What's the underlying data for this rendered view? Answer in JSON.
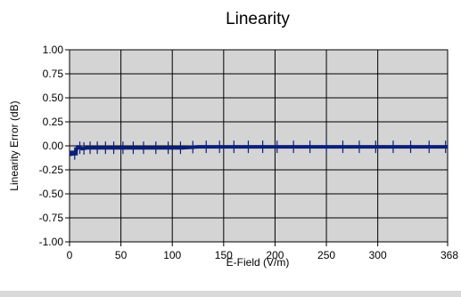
{
  "chart_data": {
    "type": "line",
    "title": "Linearity",
    "xlabel": "E-Field (V/m)",
    "ylabel": "Linearity Error (dB)",
    "xlim": [
      0,
      368
    ],
    "ylim": [
      -1.0,
      1.0
    ],
    "x_ticks": [
      0,
      50,
      100,
      150,
      200,
      250,
      300,
      368
    ],
    "x_tick_labels": [
      "0",
      "50",
      "100",
      "150",
      "200",
      "250",
      "300",
      "368"
    ],
    "y_ticks": [
      1.0,
      0.75,
      0.5,
      0.25,
      0.0,
      -0.25,
      -0.5,
      -0.75,
      -1.0
    ],
    "y_tick_labels": [
      "1.00",
      "0.75",
      "0.50",
      "0.25",
      "0.00",
      "-0.25",
      "-0.50",
      "-0.75",
      "-1.00"
    ],
    "grid": true,
    "colors": {
      "plot_background": "#d4d4d4",
      "grid": "#000000",
      "series": "#0a1f7a",
      "error_bars": "#0a1f7a"
    },
    "series": [
      {
        "x": [
          0,
          5,
          8,
          12,
          18,
          25,
          35,
          45,
          55,
          65,
          80,
          95,
          110,
          125,
          140,
          155,
          170,
          185,
          200,
          215,
          230,
          245,
          260,
          275,
          290,
          305,
          320,
          335,
          350,
          368
        ],
        "y": [
          -0.09,
          -0.08,
          -0.01,
          -0.03,
          -0.02,
          -0.02,
          -0.02,
          -0.02,
          -0.02,
          -0.02,
          -0.02,
          -0.02,
          -0.02,
          -0.01,
          -0.01,
          -0.01,
          -0.01,
          -0.01,
          -0.01,
          -0.01,
          -0.01,
          -0.01,
          -0.01,
          -0.01,
          -0.01,
          -0.01,
          -0.01,
          -0.01,
          -0.01,
          -0.01
        ]
      }
    ],
    "error_bar_x": [
      5,
      10,
      14,
      20,
      27,
      35,
      43,
      52,
      62,
      72,
      84,
      96,
      108,
      120,
      133,
      146,
      160,
      174,
      188,
      202,
      218,
      234,
      250,
      266,
      282,
      298,
      315,
      332,
      350,
      366
    ]
  }
}
